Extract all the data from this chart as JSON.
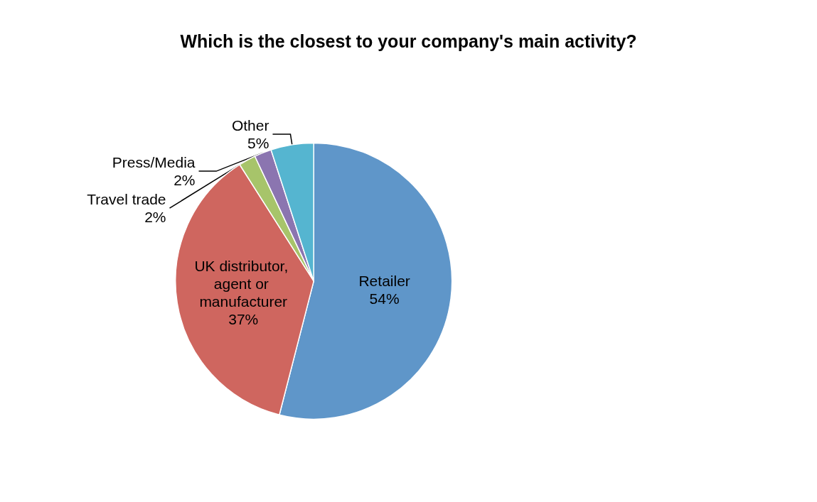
{
  "chart_data": {
    "type": "pie",
    "title": "Which is the closest to your company's main activity?",
    "categories": [
      "Retailer",
      "UK distributor, agent or manufacturer",
      "Travel trade",
      "Press/Media",
      "Other"
    ],
    "values": [
      54,
      37,
      2,
      2,
      5
    ],
    "colors": [
      "#5f96c9",
      "#cf665f",
      "#a7c46a",
      "#8b75b0",
      "#55b5d0"
    ],
    "value_labels": [
      "54%",
      "37%",
      "2%",
      "2%",
      "5%"
    ],
    "legend": false
  }
}
